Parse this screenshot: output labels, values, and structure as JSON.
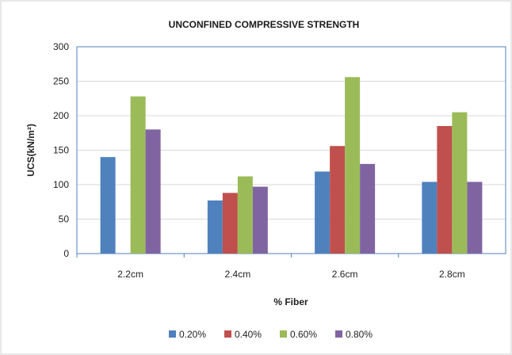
{
  "chart_data": {
    "type": "bar",
    "title": "UNCONFINED COMPRESSIVE  STRENGTH",
    "xlabel": "% Fiber",
    "ylabel": "UCS(kN/m²)",
    "categories": [
      "2.2cm",
      "2.4cm",
      "2.6cm",
      "2.8cm"
    ],
    "ylim": [
      0,
      300
    ],
    "yticks": [
      0,
      50,
      100,
      150,
      200,
      250,
      300
    ],
    "grid": true,
    "legend_position": "bottom",
    "series": [
      {
        "name": "0.20%",
        "color": "#4f81bd",
        "values": [
          140,
          77,
          119,
          104
        ]
      },
      {
        "name": "0.40%",
        "color": "#c0504d",
        "values": [
          null,
          88,
          156,
          185
        ]
      },
      {
        "name": "0.60%",
        "color": "#9bbb59",
        "values": [
          228,
          112,
          256,
          205
        ]
      },
      {
        "name": "0.80%",
        "color": "#8064a2",
        "values": [
          180,
          97,
          130,
          104
        ]
      }
    ]
  }
}
